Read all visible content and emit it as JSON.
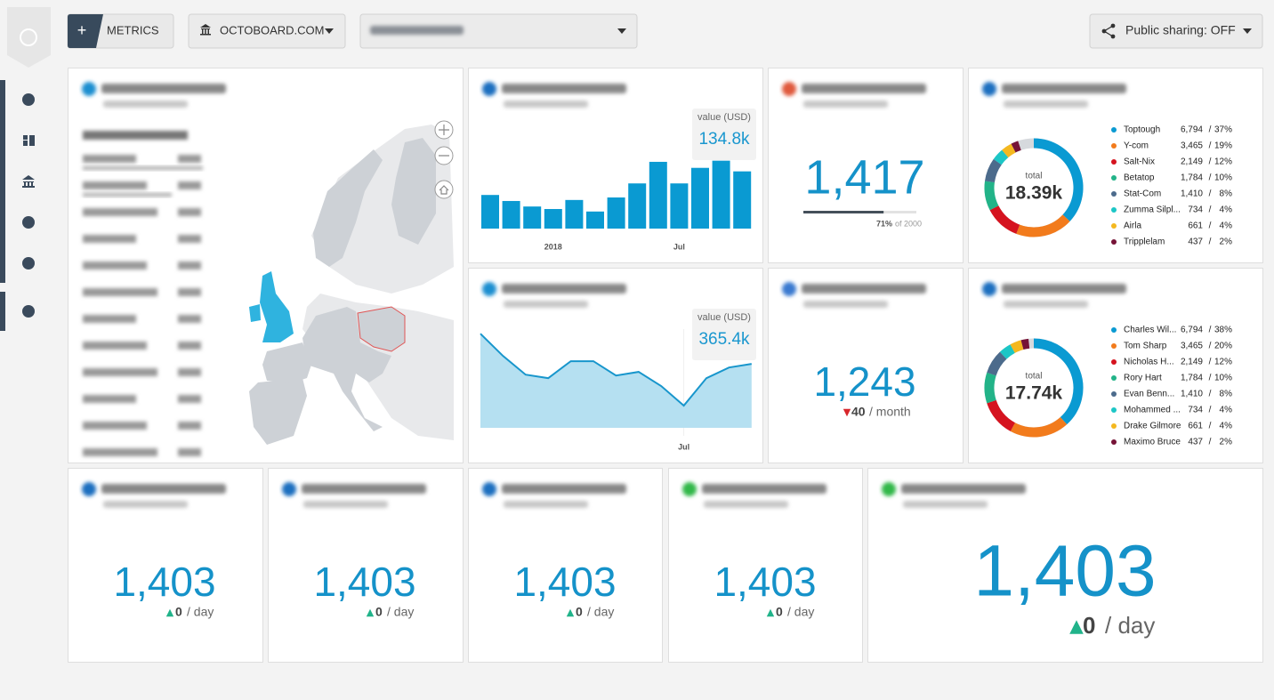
{
  "toolbar": {
    "add_button": "+",
    "metrics_button": "METRICS",
    "organization": "OCTOBOARD.COM",
    "sharing": "Public sharing: OFF"
  },
  "chart_data": [
    {
      "type": "bar",
      "categories": [
        null,
        null,
        null,
        "2018",
        null,
        null,
        null,
        null,
        null,
        "Jul",
        null,
        null,
        null
      ],
      "values": [
        67000,
        55000,
        44000,
        39000,
        57000,
        34000,
        62000,
        90000,
        133000,
        90000,
        121000,
        134800,
        114000
      ],
      "value_labels": [
        null,
        null,
        null,
        null,
        null,
        null,
        null,
        null,
        null,
        null,
        null,
        "134.8k",
        null
      ],
      "tooltip_title": "value (USD)",
      "color": "#0a9ad2",
      "ylim": [
        0,
        140000
      ]
    },
    {
      "type": "area",
      "categories": [
        null,
        null,
        null,
        null,
        null,
        null,
        null,
        null,
        null,
        "Jul",
        null,
        null,
        null
      ],
      "values": [
        538000,
        411000,
        304000,
        284000,
        381000,
        381000,
        299000,
        320000,
        239000,
        127000,
        284000,
        345000,
        365400
      ],
      "value_labels": [
        null,
        null,
        null,
        null,
        null,
        null,
        null,
        null,
        null,
        null,
        null,
        null,
        "365.4k"
      ],
      "tooltip_title": "value (USD)",
      "color": "#1896cc",
      "fill": "#b5e0f1",
      "ylim": [
        0,
        590000
      ]
    },
    {
      "type": "donut",
      "center_label": "total",
      "total": 18390,
      "total_label": "18.39k",
      "categories": [
        "Toptough",
        "Y-com",
        "Salt-Nix",
        "Betatop",
        "Stat-Com",
        "Zumma Silpl...",
        "Airla",
        "Tripplelam"
      ],
      "values": [
        6794,
        3465,
        2149,
        1784,
        1410,
        734,
        661,
        437
      ],
      "value_labels": [
        "6,794",
        "3,465",
        "2,149",
        "1,784",
        "1,410",
        "734",
        "661",
        "437"
      ],
      "shares": [
        "37%",
        "19%",
        "12%",
        "10%",
        "8%",
        "4%",
        "4%",
        "2%"
      ],
      "colors": [
        "#0a9ad2",
        "#f27b1c",
        "#d5131f",
        "#22b388",
        "#4c6b8c",
        "#1cc6c6",
        "#f4b81f",
        "#761337"
      ]
    },
    {
      "type": "donut",
      "center_label": "total",
      "total": 17740,
      "total_label": "17.74k",
      "categories": [
        "Charles Wil...",
        "Tom Sharp",
        "Nicholas H...",
        "Rory Hart",
        "Evan Benn...",
        "Mohammed ...",
        "Drake Gilmore",
        "Maximo Bruce"
      ],
      "values": [
        6794,
        3465,
        2149,
        1784,
        1410,
        734,
        661,
        437
      ],
      "value_labels": [
        "6,794",
        "3,465",
        "2,149",
        "1,784",
        "1,410",
        "734",
        "661",
        "437"
      ],
      "shares": [
        "38%",
        "20%",
        "12%",
        "10%",
        "8%",
        "4%",
        "4%",
        "2%"
      ],
      "colors": [
        "#0a9ad2",
        "#f27b1c",
        "#d5131f",
        "#22b388",
        "#4c6b8c",
        "#1cc6c6",
        "#f4b81f",
        "#761337"
      ]
    }
  ],
  "widgets": {
    "goal": {
      "value": "1,417",
      "progress": 71,
      "progress_label": "71%",
      "goal_label": "of 2000"
    },
    "ppc": {
      "value": "1,243",
      "delta": "40",
      "direction": "down",
      "unit": "/ month"
    },
    "metrics": [
      {
        "value": "1,403",
        "delta": "0",
        "direction": "up",
        "unit": "/ day"
      },
      {
        "value": "1,403",
        "delta": "0",
        "direction": "up",
        "unit": "/ day"
      },
      {
        "value": "1,403",
        "delta": "0",
        "direction": "up",
        "unit": "/ day"
      },
      {
        "value": "1,403",
        "delta": "0",
        "direction": "up",
        "unit": "/ day"
      },
      {
        "value": "1,403",
        "delta": "0",
        "direction": "up",
        "unit": "/ day"
      }
    ]
  }
}
